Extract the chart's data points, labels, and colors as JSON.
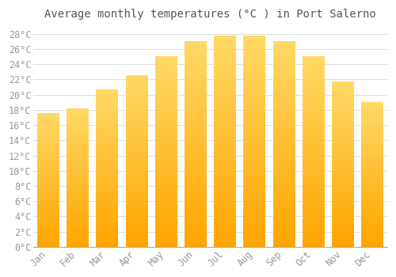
{
  "title": "Average monthly temperatures (°C ) in Port Salerno",
  "months": [
    "Jan",
    "Feb",
    "Mar",
    "Apr",
    "May",
    "Jun",
    "Jul",
    "Aug",
    "Sep",
    "Oct",
    "Nov",
    "Dec"
  ],
  "values": [
    17.5,
    18.2,
    20.7,
    22.5,
    25.0,
    27.0,
    27.7,
    27.7,
    27.0,
    25.0,
    21.7,
    19.0
  ],
  "bar_color_top": "#FFD966",
  "bar_color_bottom": "#FFA500",
  "background_color": "#FFFFFF",
  "grid_color": "#DDDDDD",
  "text_color": "#999999",
  "title_color": "#555555",
  "ylim": [
    0,
    29
  ],
  "yticks": [
    0,
    2,
    4,
    6,
    8,
    10,
    12,
    14,
    16,
    18,
    20,
    22,
    24,
    26,
    28
  ],
  "title_fontsize": 10,
  "tick_fontsize": 8.5,
  "bar_width": 0.75
}
